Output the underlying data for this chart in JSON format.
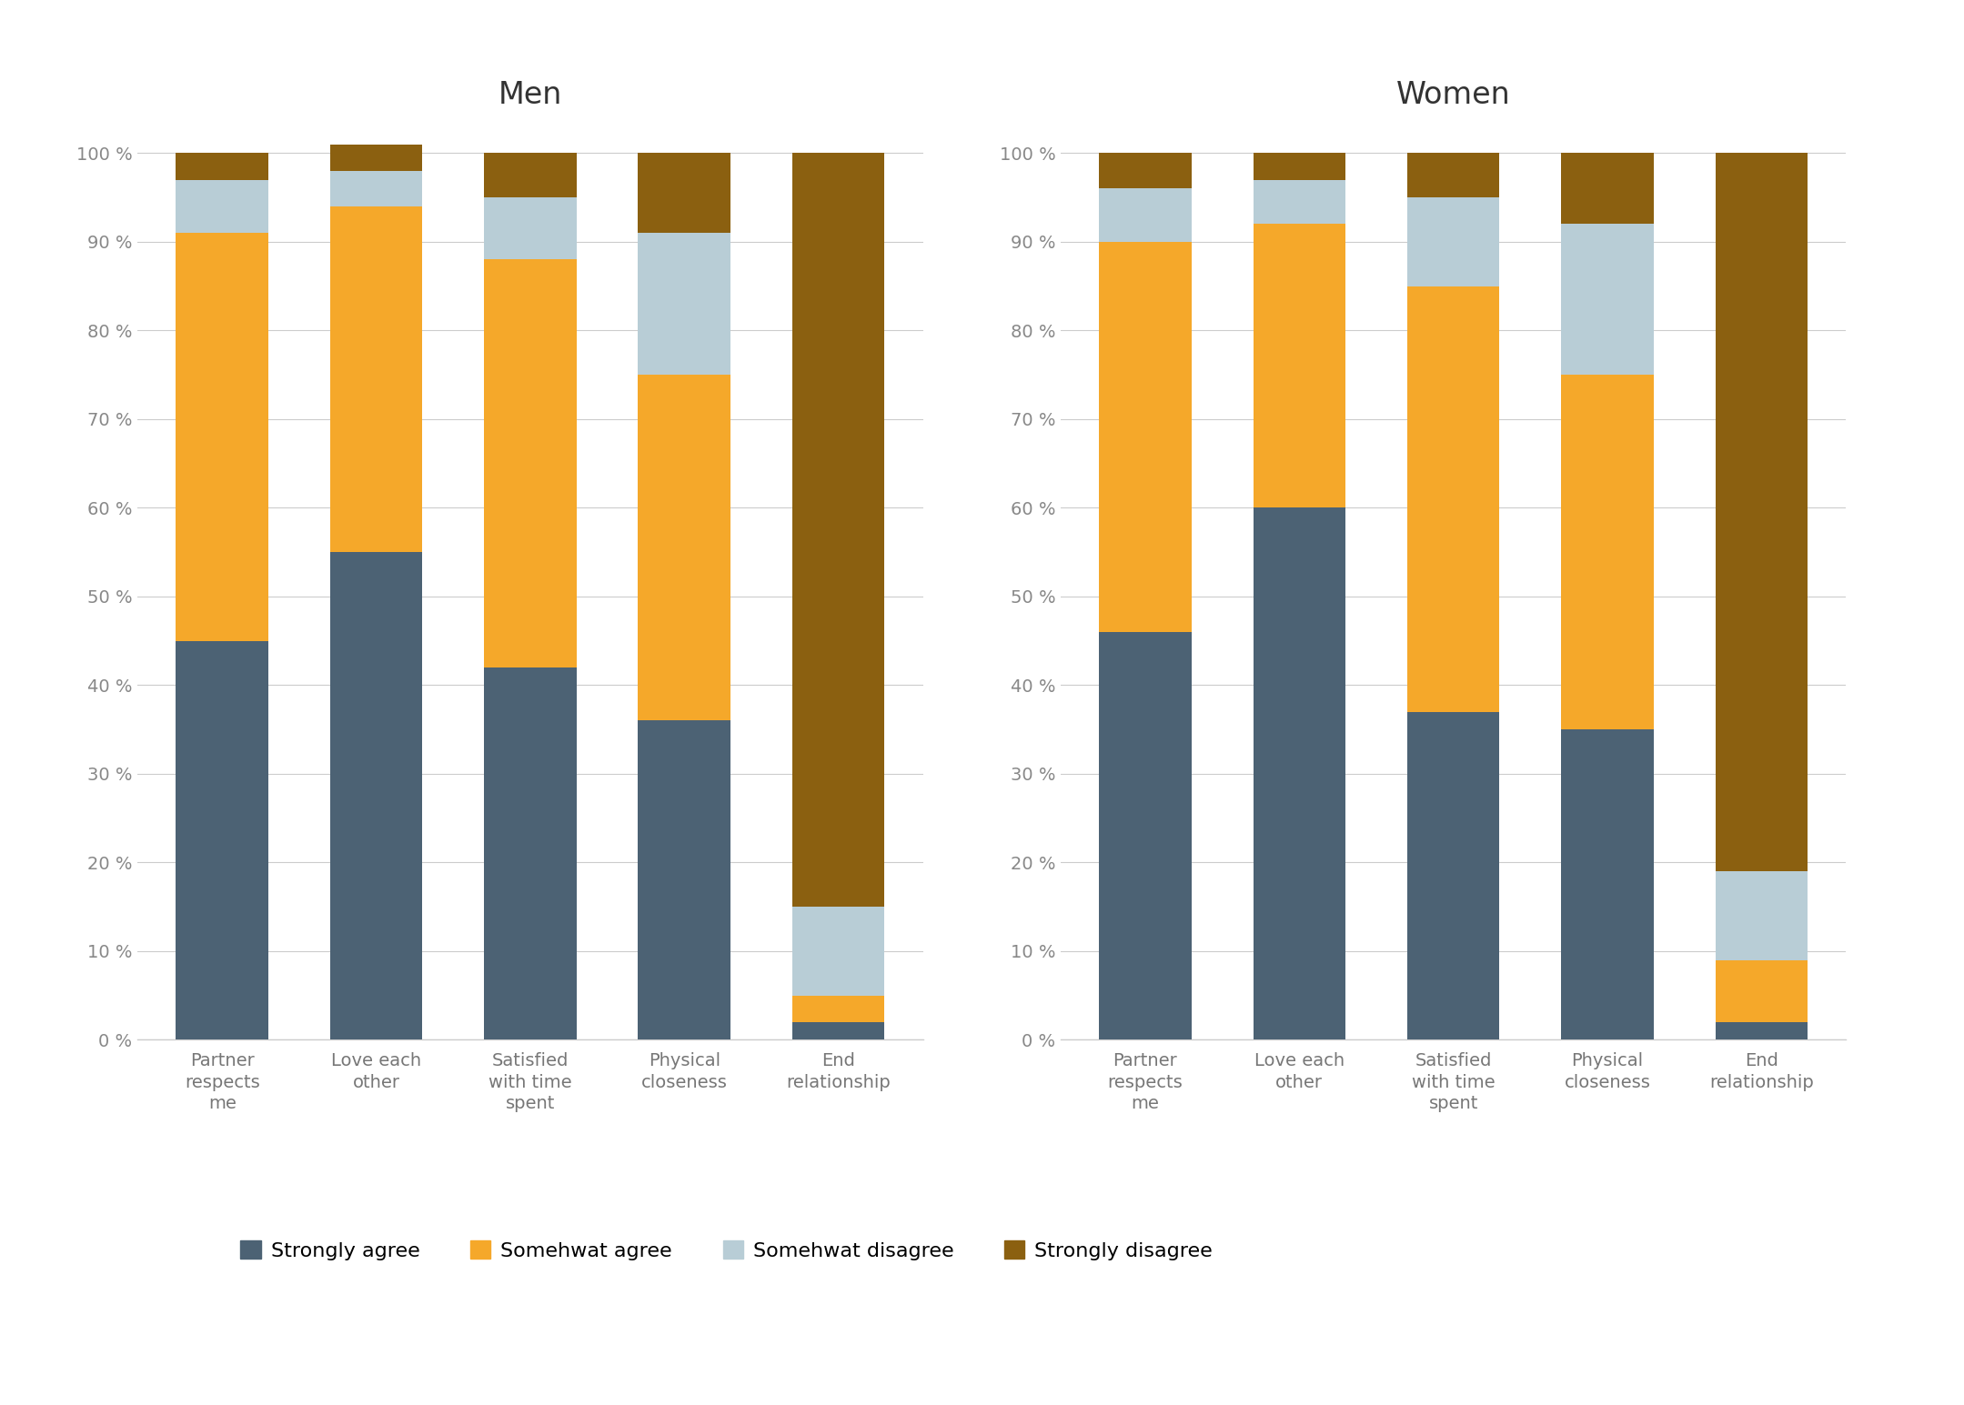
{
  "categories": [
    "Partner\nrespects\nme",
    "Love each\nother",
    "Satisfied\nwith time\nspent",
    "Physical\ncloseness",
    "End\nrelationship"
  ],
  "men": {
    "strongly_agree": [
      45,
      55,
      42,
      36,
      2
    ],
    "somewhat_agree": [
      46,
      39,
      46,
      39,
      3
    ],
    "somewhat_disagree": [
      6,
      4,
      7,
      16,
      10
    ],
    "strongly_disagree": [
      3,
      3,
      5,
      9,
      85
    ]
  },
  "women": {
    "strongly_agree": [
      46,
      60,
      37,
      35,
      2
    ],
    "somewhat_agree": [
      44,
      32,
      48,
      40,
      7
    ],
    "somewhat_disagree": [
      6,
      5,
      10,
      17,
      10
    ],
    "strongly_disagree": [
      4,
      3,
      5,
      8,
      81
    ]
  },
  "colors": {
    "strongly_agree": "#4C6274",
    "somewhat_agree": "#F5A82A",
    "somewhat_disagree": "#B8CDD6",
    "strongly_disagree": "#8B6010"
  },
  "legend_labels": [
    "Strongly agree",
    "Somehwat agree",
    "Somehwat disagree",
    "Strongly disagree"
  ],
  "title_men": "Men",
  "title_women": "Women",
  "background_color": "#FFFFFF",
  "bar_width": 0.6,
  "ytick_labels": [
    "0 %",
    "10 %",
    "20 %",
    "30 %",
    "40 %",
    "50 %",
    "60 %",
    "70 %",
    "80 %",
    "90 %",
    "100 %"
  ],
  "ytick_values": [
    0,
    10,
    20,
    30,
    40,
    50,
    60,
    70,
    80,
    90,
    100
  ]
}
